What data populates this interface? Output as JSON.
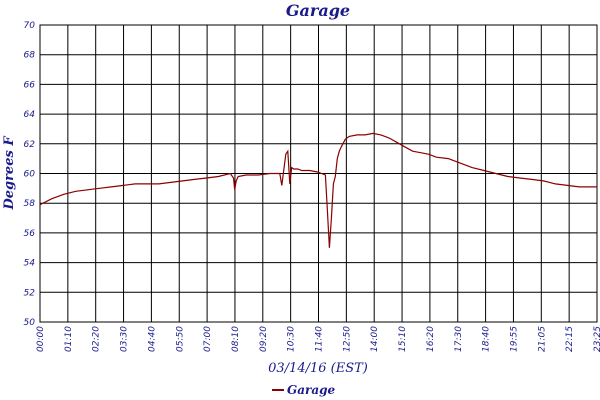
{
  "chart_data": {
    "type": "line",
    "title": "Garage",
    "xlabel": "03/14/16 (EST)",
    "ylabel": "Degrees F",
    "ylim": [
      50,
      70
    ],
    "yticks": [
      "50",
      "52",
      "54",
      "56",
      "58",
      "60",
      "62",
      "64",
      "66",
      "68",
      "70"
    ],
    "xlim": [
      0,
      1405
    ],
    "x_unit": "minutes after 00:00",
    "xticks": [
      "00:00",
      "01:10",
      "02:20",
      "03:30",
      "04:40",
      "05:50",
      "07:00",
      "08:10",
      "09:20",
      "10:30",
      "11:40",
      "12:50",
      "14:00",
      "15:10",
      "16:20",
      "17:30",
      "18:40",
      "19:55",
      "21:05",
      "22:15",
      "23:25"
    ],
    "grid": true,
    "legend_position": "bottom-center",
    "series": [
      {
        "name": "Garage",
        "color": "#8b0000",
        "x": [
          0,
          30,
          60,
          90,
          120,
          150,
          180,
          210,
          240,
          270,
          300,
          330,
          360,
          390,
          420,
          450,
          480,
          488,
          491,
          495,
          500,
          520,
          550,
          580,
          605,
          610,
          620,
          625,
          630,
          635,
          640,
          650,
          660,
          680,
          700,
          720,
          725,
          730,
          735,
          740,
          745,
          750,
          755,
          760,
          770,
          780,
          800,
          820,
          840,
          860,
          880,
          900,
          920,
          940,
          960,
          980,
          1000,
          1030,
          1060,
          1090,
          1120,
          1150,
          1180,
          1210,
          1240,
          1270,
          1300,
          1330,
          1360,
          1390,
          1405
        ],
        "y": [
          57.9,
          58.3,
          58.6,
          58.8,
          58.9,
          59.0,
          59.1,
          59.2,
          59.3,
          59.3,
          59.3,
          59.4,
          59.5,
          59.6,
          59.7,
          59.8,
          60.0,
          59.7,
          58.9,
          59.5,
          59.8,
          59.9,
          59.9,
          60.0,
          60.0,
          59.2,
          61.3,
          61.5,
          59.3,
          60.4,
          60.3,
          60.3,
          60.2,
          60.2,
          60.1,
          59.9,
          57.5,
          55.0,
          57.0,
          59.3,
          59.8,
          61.0,
          61.5,
          61.8,
          62.3,
          62.5,
          62.6,
          62.6,
          62.7,
          62.6,
          62.4,
          62.1,
          61.8,
          61.5,
          61.4,
          61.3,
          61.1,
          61.0,
          60.7,
          60.4,
          60.2,
          60.0,
          59.8,
          59.7,
          59.6,
          59.5,
          59.3,
          59.2,
          59.1,
          59.1,
          59.1
        ]
      }
    ]
  }
}
